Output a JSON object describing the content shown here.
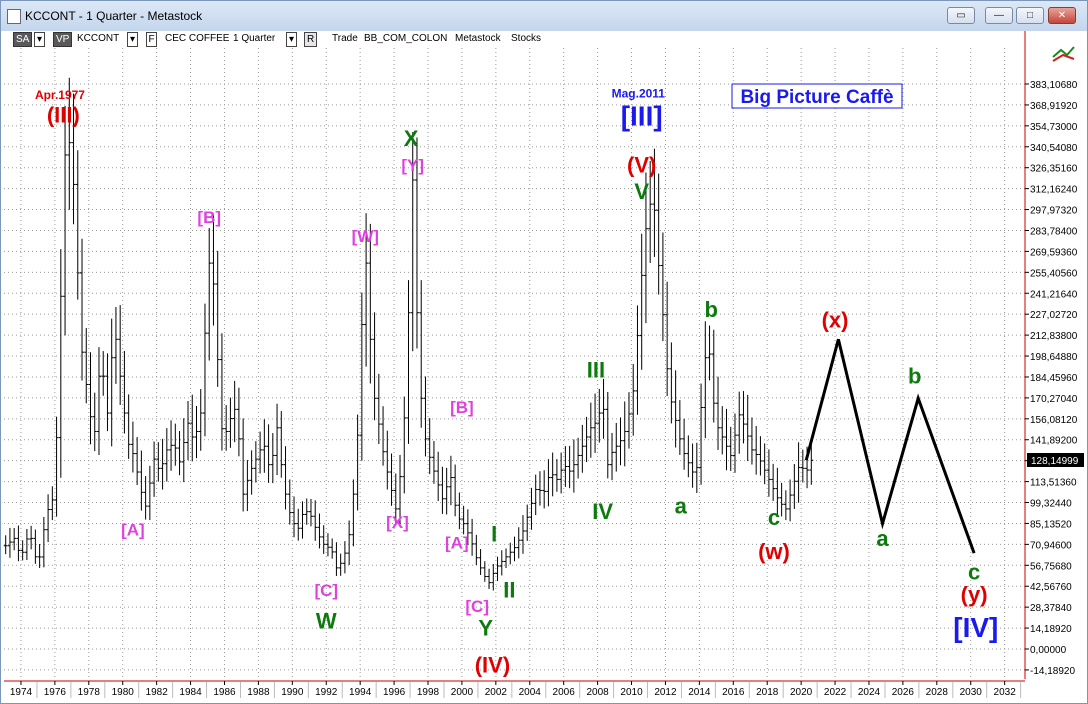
{
  "window": {
    "title": "KCCONT - 1 Quarter - Metastock",
    "buttons": [
      "restore",
      "minimize",
      "maximize",
      "close"
    ]
  },
  "toolbar": {
    "sa": "SA",
    "vp": "VP",
    "symbol": "KCCONT",
    "f_label": "F",
    "name": "CEC COFFEE",
    "period": "1 Quarter",
    "r_label": "R",
    "trade": "Trade",
    "source": "BB_COM_COLON",
    "app": "Metastock",
    "type": "Stocks"
  },
  "chart_data": {
    "type": "bar",
    "subtype": "OHLC price bars with Elliott wave annotations",
    "title": "Big Picture Caffè",
    "xlabel": "",
    "ylabel": "",
    "x_range": [
      1973.0,
      2033.2
    ],
    "ylim": [
      -20,
      400
    ],
    "x_ticks": [
      "1974",
      "1976",
      "1978",
      "1980",
      "1982",
      "1984",
      "1986",
      "1988",
      "1990",
      "1992",
      "1994",
      "1996",
      "1998",
      "2000",
      "2002",
      "2004",
      "2006",
      "2008",
      "2010",
      "2012",
      "2014",
      "2016",
      "2018",
      "2020",
      "2022",
      "2024",
      "2026",
      "2028",
      "2030",
      "2032"
    ],
    "y_ticks": [
      "383,10680",
      "368,91920",
      "354,73000",
      "340,54080",
      "326,35160",
      "312,16240",
      "297,97320",
      "283,78400",
      "269,59360",
      "255,40560",
      "241,21640",
      "227,02720",
      "212,83800",
      "198,64880",
      "184,45960",
      "170,27040",
      "156,08120",
      "141,89200",
      "127,70280",
      "113,51360",
      "99,32440",
      "85,13520",
      "70,94600",
      "56,75680",
      "42,56760",
      "28,37840",
      "14,18920",
      "0,00000",
      "-14,18920"
    ],
    "last_price": "128,14999",
    "grid": true,
    "price_path": [
      [
        1973.1,
        70
      ],
      [
        1973.6,
        75
      ],
      [
        1974.0,
        62
      ],
      [
        1974.5,
        80
      ],
      [
        1975.0,
        55
      ],
      [
        1975.5,
        92
      ],
      [
        1976.0,
        105
      ],
      [
        1976.3,
        220
      ],
      [
        1976.6,
        335
      ],
      [
        1976.9,
        345
      ],
      [
        1977.2,
        300
      ],
      [
        1977.5,
        210
      ],
      [
        1977.9,
        175
      ],
      [
        1978.3,
        140
      ],
      [
        1978.7,
        200
      ],
      [
        1979.1,
        160
      ],
      [
        1979.5,
        220
      ],
      [
        1979.9,
        180
      ],
      [
        1980.3,
        140
      ],
      [
        1980.7,
        130
      ],
      [
        1981.0,
        110
      ],
      [
        1981.4,
        95
      ],
      [
        1981.8,
        130
      ],
      [
        1982.2,
        120
      ],
      [
        1982.6,
        135
      ],
      [
        1983.0,
        140
      ],
      [
        1983.4,
        125
      ],
      [
        1983.8,
        155
      ],
      [
        1984.2,
        140
      ],
      [
        1984.6,
        160
      ],
      [
        1984.9,
        225
      ],
      [
        1985.2,
        280
      ],
      [
        1985.5,
        215
      ],
      [
        1985.9,
        140
      ],
      [
        1986.3,
        155
      ],
      [
        1986.7,
        165
      ],
      [
        1987.1,
        105
      ],
      [
        1987.5,
        120
      ],
      [
        1987.9,
        130
      ],
      [
        1988.3,
        140
      ],
      [
        1988.7,
        120
      ],
      [
        1989.1,
        150
      ],
      [
        1989.5,
        110
      ],
      [
        1989.9,
        90
      ],
      [
        1990.3,
        80
      ],
      [
        1990.7,
        95
      ],
      [
        1991.1,
        90
      ],
      [
        1991.5,
        78
      ],
      [
        1991.9,
        70
      ],
      [
        1992.3,
        68
      ],
      [
        1992.6,
        55
      ],
      [
        1993.0,
        60
      ],
      [
        1993.4,
        80
      ],
      [
        1993.8,
        130
      ],
      [
        1994.1,
        220
      ],
      [
        1994.4,
        270
      ],
      [
        1994.7,
        180
      ],
      [
        1995.0,
        160
      ],
      [
        1995.4,
        130
      ],
      [
        1995.8,
        110
      ],
      [
        1996.1,
        95
      ],
      [
        1996.5,
        130
      ],
      [
        1996.8,
        210
      ],
      [
        1997.1,
        318
      ],
      [
        1997.4,
        210
      ],
      [
        1997.7,
        150
      ],
      [
        1998.1,
        130
      ],
      [
        1998.5,
        115
      ],
      [
        1998.9,
        100
      ],
      [
        1999.3,
        120
      ],
      [
        1999.7,
        90
      ],
      [
        2000.1,
        85
      ],
      [
        2000.5,
        75
      ],
      [
        2000.9,
        60
      ],
      [
        2001.3,
        50
      ],
      [
        2001.6,
        45
      ],
      [
        2002.0,
        55
      ],
      [
        2002.4,
        60
      ],
      [
        2002.8,
        65
      ],
      [
        2003.2,
        70
      ],
      [
        2003.6,
        80
      ],
      [
        2004.0,
        95
      ],
      [
        2004.4,
        110
      ],
      [
        2004.8,
        105
      ],
      [
        2005.2,
        120
      ],
      [
        2005.6,
        115
      ],
      [
        2006.0,
        125
      ],
      [
        2006.4,
        120
      ],
      [
        2006.8,
        130
      ],
      [
        2007.2,
        140
      ],
      [
        2007.6,
        150
      ],
      [
        2008.0,
        155
      ],
      [
        2008.3,
        170
      ],
      [
        2008.6,
        125
      ],
      [
        2008.9,
        135
      ],
      [
        2009.3,
        140
      ],
      [
        2009.7,
        150
      ],
      [
        2010.1,
        175
      ],
      [
        2010.4,
        220
      ],
      [
        2010.7,
        270
      ],
      [
        2011.0,
        300
      ],
      [
        2011.3,
        305
      ],
      [
        2011.6,
        260
      ],
      [
        2011.9,
        220
      ],
      [
        2012.2,
        175
      ],
      [
        2012.6,
        155
      ],
      [
        2013.0,
        135
      ],
      [
        2013.4,
        125
      ],
      [
        2013.8,
        115
      ],
      [
        2014.2,
        180
      ],
      [
        2014.5,
        215
      ],
      [
        2014.8,
        170
      ],
      [
        2015.1,
        150
      ],
      [
        2015.5,
        140
      ],
      [
        2015.9,
        130
      ],
      [
        2016.3,
        160
      ],
      [
        2016.7,
        150
      ],
      [
        2017.1,
        135
      ],
      [
        2017.5,
        130
      ],
      [
        2017.9,
        120
      ],
      [
        2018.3,
        110
      ],
      [
        2018.7,
        100
      ],
      [
        2019.1,
        95
      ],
      [
        2019.5,
        110
      ],
      [
        2019.9,
        125
      ],
      [
        2020.3,
        120
      ],
      [
        2020.6,
        128
      ]
    ],
    "projection_path": [
      [
        2020.3,
        128
      ],
      [
        2022.2,
        210
      ],
      [
        2024.8,
        85
      ],
      [
        2026.9,
        170
      ],
      [
        2030.2,
        65
      ]
    ],
    "wave_labels": [
      {
        "text": "(III)",
        "x": 1976.5,
        "y": 357,
        "color": "#e00000",
        "size": 22
      },
      {
        "text": "[A]",
        "x": 1980.6,
        "y": 77,
        "color": "#e040e0",
        "size": 17
      },
      {
        "text": "[B]",
        "x": 1985.1,
        "y": 289,
        "color": "#e040e0",
        "size": 17
      },
      {
        "text": "[C]",
        "x": 1992.0,
        "y": 36,
        "color": "#e040e0",
        "size": 17
      },
      {
        "text": "W",
        "x": 1992.0,
        "y": 14,
        "color": "#0d7a0d",
        "size": 22
      },
      {
        "text": "[W]",
        "x": 1994.3,
        "y": 276,
        "color": "#e040e0",
        "size": 17
      },
      {
        "text": "[X]",
        "x": 1996.2,
        "y": 82,
        "color": "#e040e0",
        "size": 17
      },
      {
        "text": "X",
        "x": 1997.0,
        "y": 341,
        "color": "#0d7a0d",
        "size": 22
      },
      {
        "text": "[Y]",
        "x": 1997.1,
        "y": 324,
        "color": "#e040e0",
        "size": 17
      },
      {
        "text": "[B]",
        "x": 2000.0,
        "y": 160,
        "color": "#e040e0",
        "size": 17
      },
      {
        "text": "[A]",
        "x": 1999.7,
        "y": 68,
        "color": "#e040e0",
        "size": 17
      },
      {
        "text": "[C]",
        "x": 2000.9,
        "y": 25,
        "color": "#e040e0",
        "size": 17
      },
      {
        "text": "I",
        "x": 2001.9,
        "y": 73,
        "color": "#0d7a0d",
        "size": 22
      },
      {
        "text": "II",
        "x": 2002.8,
        "y": 35,
        "color": "#0d7a0d",
        "size": 22
      },
      {
        "text": "Y",
        "x": 2001.4,
        "y": 9,
        "color": "#0d7a0d",
        "size": 22
      },
      {
        "text": "(IV)",
        "x": 2001.8,
        "y": -16,
        "color": "#e00000",
        "size": 22
      },
      {
        "text": "III",
        "x": 2007.9,
        "y": 184,
        "color": "#0d7a0d",
        "size": 22
      },
      {
        "text": "IV",
        "x": 2008.3,
        "y": 88,
        "color": "#0d7a0d",
        "size": 22
      },
      {
        "text": "[III]",
        "x": 2010.6,
        "y": 355,
        "color": "#1a1aee",
        "size": 28
      },
      {
        "text": "(V)",
        "x": 2010.6,
        "y": 323,
        "color": "#e00000",
        "size": 22
      },
      {
        "text": "V",
        "x": 2010.6,
        "y": 305,
        "color": "#0d7a0d",
        "size": 22
      },
      {
        "text": "b",
        "x": 2014.7,
        "y": 225,
        "color": "#0d7a0d",
        "size": 22
      },
      {
        "text": "a",
        "x": 2012.9,
        "y": 92,
        "color": "#0d7a0d",
        "size": 22
      },
      {
        "text": "c",
        "x": 2018.4,
        "y": 84,
        "color": "#0d7a0d",
        "size": 22
      },
      {
        "text": "(w)",
        "x": 2018.4,
        "y": 61,
        "color": "#e00000",
        "size": 22
      },
      {
        "text": "(x)",
        "x": 2022.0,
        "y": 218,
        "color": "#e00000",
        "size": 22
      },
      {
        "text": "b",
        "x": 2026.7,
        "y": 180,
        "color": "#0d7a0d",
        "size": 22
      },
      {
        "text": "a",
        "x": 2024.8,
        "y": 70,
        "color": "#0d7a0d",
        "size": 22
      },
      {
        "text": "c",
        "x": 2030.2,
        "y": 47,
        "color": "#0d7a0d",
        "size": 22
      },
      {
        "text": "(y)",
        "x": 2030.2,
        "y": 32,
        "color": "#e00000",
        "size": 22
      },
      {
        "text": "[IV]",
        "x": 2030.3,
        "y": 8,
        "color": "#1a1aee",
        "size": 28
      }
    ],
    "annotations": [
      {
        "text": "Apr.1977",
        "x": 1976.3,
        "y": 373,
        "color": "#e00000"
      },
      {
        "text": "Mag.2011",
        "x": 2010.4,
        "y": 374,
        "color": "#1a1aee"
      }
    ]
  }
}
